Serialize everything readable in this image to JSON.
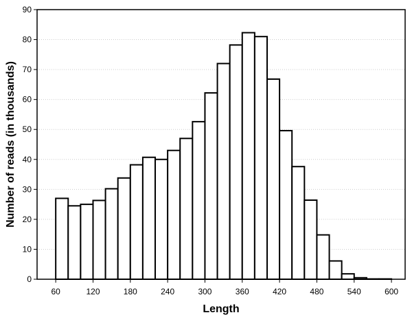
{
  "chart_data": {
    "type": "histogram",
    "xlabel": "Length",
    "ylabel": "Number of reads (in thousands)",
    "bins": [
      60,
      80,
      100,
      120,
      140,
      160,
      180,
      200,
      220,
      240,
      260,
      280,
      300,
      320,
      340,
      360,
      380,
      400,
      420,
      440,
      460,
      480,
      500,
      520,
      540,
      560,
      580,
      600
    ],
    "values": [
      27,
      24.5,
      25,
      26.3,
      30.2,
      33.8,
      38.2,
      40.7,
      40,
      43,
      47,
      52.6,
      62.2,
      72,
      78.2,
      82.3,
      81,
      66.8,
      49.6,
      37.6,
      26.4,
      14.8,
      6.1,
      1.8,
      0.5,
      0.1,
      0.1
    ],
    "color": "#ffffff",
    "edgecolor": "#000000",
    "xlim": [
      30,
      622
    ],
    "xticks": [
      60,
      120,
      180,
      240,
      300,
      360,
      420,
      480,
      540,
      600
    ],
    "ylim": [
      0,
      90
    ],
    "yticks": [
      0,
      10,
      20,
      30,
      40,
      50,
      60,
      70,
      80,
      90
    ],
    "grid": true
  }
}
